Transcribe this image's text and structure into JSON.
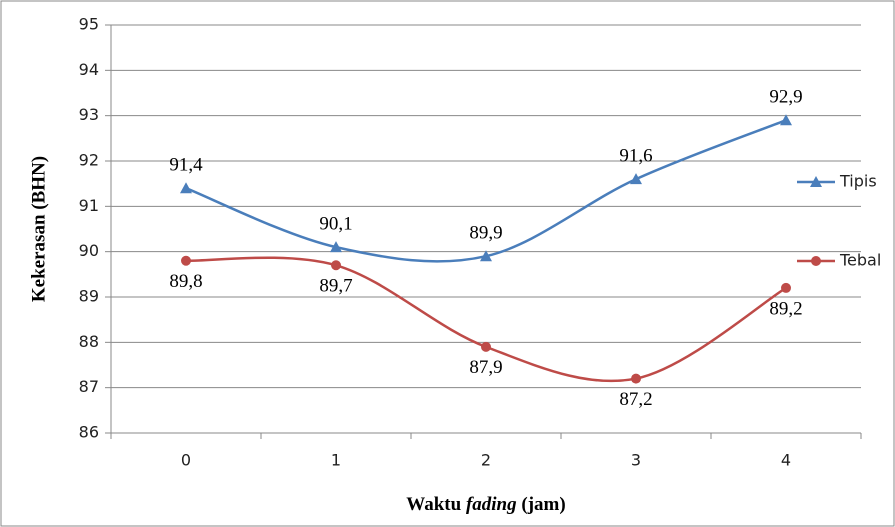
{
  "chart_data": {
    "type": "line",
    "y_label": "Kekerasan (BHN)",
    "x_label": [
      "Waktu",
      "fading",
      "(jam)"
    ],
    "categories": [
      "0",
      "1",
      "2",
      "3",
      "4"
    ],
    "series": [
      {
        "name": "Tipis",
        "color": "#4a7ebb",
        "marker": "triangle",
        "values": [
          91.4,
          90.1,
          89.9,
          91.6,
          92.9
        ],
        "value_labels": [
          "91,4",
          "90,1",
          "89,9",
          "91,6",
          "92,9"
        ]
      },
      {
        "name": "Tebal",
        "color": "#be4b48",
        "marker": "circle",
        "values": [
          89.8,
          89.7,
          87.9,
          87.2,
          89.2
        ],
        "value_labels": [
          "89,8",
          "89,7",
          "87,9",
          "87,2",
          "89,2"
        ]
      }
    ],
    "ylim": [
      86,
      95
    ],
    "yticks": [
      86,
      87,
      88,
      89,
      90,
      91,
      92,
      93,
      94,
      95
    ],
    "grid": true,
    "smooth": true,
    "legend": "right"
  }
}
